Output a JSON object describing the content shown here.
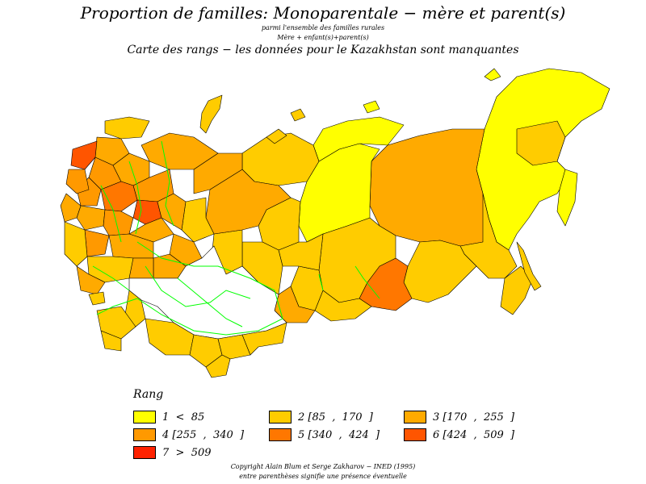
{
  "header": {
    "title": "Proportion de familles: Monoparentale  −  mère et parent(s)",
    "line1": "parmi l'ensemble des familles rurales",
    "line2": "Mère  +  enfant(s)+parent(s)",
    "subtitle": "Carte des rangs  −  les données pour le Kazakhstan sont manquantes"
  },
  "legend": {
    "title": "Rang",
    "items": [
      {
        "label": "1  <  85",
        "color": "#ffff00"
      },
      {
        "label": "2 [85  ,  170  ]",
        "color": "#ffcc00"
      },
      {
        "label": "3 [170  ,  255  ]",
        "color": "#ffaa00"
      },
      {
        "label": "4 [255  ,  340  ]",
        "color": "#ff9900"
      },
      {
        "label": "5 [340  ,  424  ]",
        "color": "#ff7700"
      },
      {
        "label": "6 [424  ,  509  ]",
        "color": "#ff5500"
      },
      {
        "label": "7  >  509",
        "color": "#ff2200"
      }
    ]
  },
  "map": {
    "border_color": "#000000",
    "river_color": "#00ff00",
    "missing_color": "#ffffff"
  },
  "footer": {
    "line1": "Copyright  Alain  Blum  et  Serge  Zakharov  −  INED  (1995)",
    "line2": "entre  parenthèses  signifie  une  présence  éventuelle"
  }
}
